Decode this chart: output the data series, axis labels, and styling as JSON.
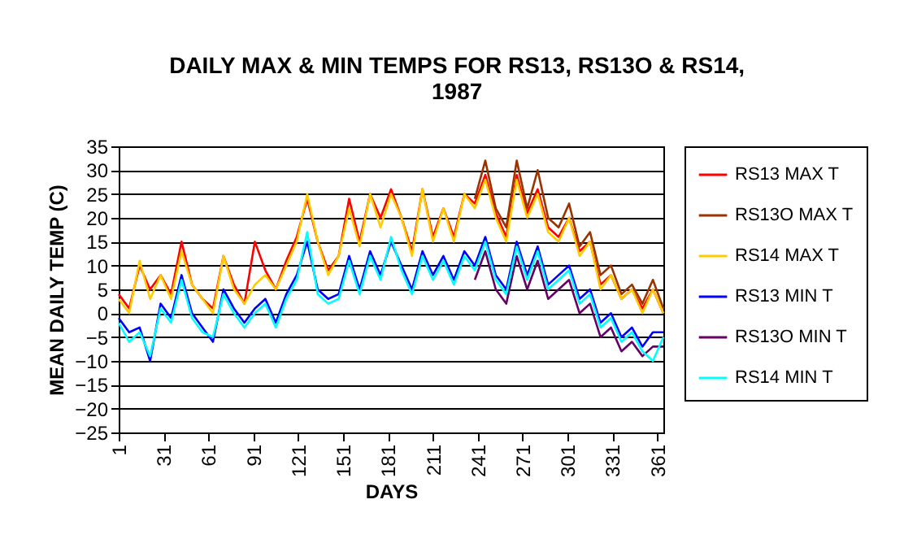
{
  "chart_data": {
    "type": "line",
    "title": "DAILY MAX & MIN TEMPS FOR RS13, RS13O & RS14,\n1987",
    "xlabel": "DAYS",
    "ylabel": "MEAN DAILY TEMP (C)",
    "x": [
      1,
      8,
      15,
      22,
      29,
      36,
      43,
      50,
      57,
      64,
      71,
      78,
      85,
      92,
      99,
      106,
      113,
      120,
      127,
      134,
      141,
      148,
      155,
      162,
      169,
      176,
      183,
      190,
      197,
      204,
      211,
      218,
      225,
      232,
      239,
      246,
      253,
      260,
      267,
      274,
      281,
      288,
      295,
      302,
      309,
      316,
      323,
      330,
      337,
      344,
      351,
      358,
      365
    ],
    "xlim": [
      1,
      365
    ],
    "xticks": [
      1,
      31,
      61,
      91,
      121,
      151,
      181,
      211,
      241,
      271,
      301,
      331,
      361
    ],
    "ylim": [
      -25,
      35
    ],
    "yticks": [
      -25,
      -20,
      -15,
      -10,
      -5,
      0,
      5,
      10,
      15,
      20,
      25,
      30,
      35
    ],
    "grid": "y",
    "legend": "right",
    "series": [
      {
        "name": "RS13 MAX T",
        "color": "#ff0000",
        "values": [
          4,
          1,
          10,
          5,
          8,
          4,
          15,
          6,
          3,
          1,
          12,
          6,
          2,
          15,
          9,
          5,
          11,
          16,
          24,
          15,
          9,
          12,
          24,
          15,
          25,
          20,
          26,
          20,
          13,
          26,
          16,
          22,
          16,
          25,
          23,
          29,
          21,
          16,
          29,
          21,
          26,
          18,
          16,
          20,
          13,
          15,
          6,
          8,
          3,
          5,
          1,
          5,
          0
        ]
      },
      {
        "name": "RS13O MAX T",
        "color": "#993300",
        "values": [
          null,
          null,
          null,
          null,
          null,
          null,
          null,
          null,
          null,
          null,
          null,
          null,
          null,
          null,
          null,
          null,
          null,
          null,
          null,
          null,
          null,
          null,
          null,
          null,
          null,
          null,
          null,
          null,
          null,
          null,
          null,
          null,
          null,
          null,
          24,
          32,
          22,
          18,
          32,
          22,
          30,
          20,
          18,
          23,
          14,
          17,
          8,
          10,
          4,
          6,
          2,
          7,
          1
        ]
      },
      {
        "name": "RS14 MAX T",
        "color": "#ffcc00",
        "values": [
          3,
          0,
          11,
          3,
          8,
          3,
          13,
          6,
          3,
          0,
          12,
          5,
          2,
          6,
          8,
          5,
          10,
          15,
          25,
          15,
          8,
          12,
          22,
          14,
          25,
          18,
          25,
          20,
          12,
          26,
          15,
          22,
          15,
          25,
          22,
          28,
          20,
          15,
          28,
          20,
          25,
          17,
          15,
          20,
          12,
          15,
          5,
          8,
          3,
          5,
          0,
          5,
          0
        ]
      },
      {
        "name": "RS13 MIN T",
        "color": "#0000ff",
        "values": [
          -1,
          -4,
          -3,
          -10,
          2,
          -1,
          8,
          0,
          -3,
          -6,
          5,
          1,
          -2,
          1,
          3,
          -2,
          4,
          8,
          15,
          5,
          3,
          4,
          12,
          5,
          13,
          8,
          15,
          10,
          5,
          13,
          8,
          12,
          7,
          13,
          10,
          16,
          8,
          5,
          15,
          8,
          14,
          6,
          8,
          10,
          3,
          5,
          -2,
          0,
          -5,
          -3,
          -7,
          -4,
          -4
        ]
      },
      {
        "name": "RS13O MIN T",
        "color": "#660066",
        "values": [
          null,
          null,
          null,
          null,
          null,
          null,
          null,
          null,
          null,
          null,
          null,
          null,
          null,
          null,
          null,
          null,
          null,
          null,
          null,
          null,
          null,
          null,
          null,
          null,
          null,
          null,
          null,
          null,
          null,
          null,
          null,
          null,
          null,
          null,
          7,
          13,
          5,
          2,
          12,
          5,
          11,
          3,
          5,
          7,
          0,
          2,
          -5,
          -3,
          -8,
          -6,
          -9,
          -7,
          -7
        ]
      },
      {
        "name": "RS14 MIN T",
        "color": "#00ffff",
        "values": [
          -2,
          -6,
          -4,
          -9,
          1,
          -2,
          7,
          -1,
          -4,
          -5,
          4,
          0,
          -3,
          0,
          2,
          -3,
          3,
          7,
          17,
          4,
          2,
          3,
          11,
          4,
          12,
          7,
          16,
          9,
          4,
          12,
          7,
          11,
          6,
          12,
          9,
          15,
          7,
          4,
          14,
          7,
          13,
          5,
          7,
          9,
          2,
          4,
          -3,
          -1,
          -6,
          -4,
          -8,
          -10,
          -5
        ]
      }
    ]
  }
}
